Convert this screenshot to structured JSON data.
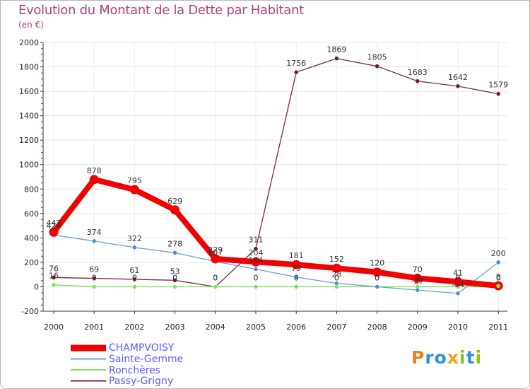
{
  "title": "Evolution du Montant de la Dette par Habitant",
  "unit": "(en €)",
  "logo": [
    "P",
    "r",
    "o",
    "x",
    "i",
    "t",
    "i"
  ],
  "logo_colors": [
    "#f08020",
    "#3090e0",
    "#3090e0",
    "#f0a020",
    "#90c020",
    "#3090e0",
    "#90c020"
  ],
  "chart_data": {
    "type": "line",
    "title": "Evolution du Montant de la Dette par Habitant",
    "ylabel": "(en €)",
    "xlabel": "",
    "ylim": [
      -200,
      2000
    ],
    "yticks": [
      -200,
      0,
      200,
      400,
      600,
      800,
      1000,
      1200,
      1400,
      1600,
      1800,
      2000
    ],
    "categories": [
      "2000",
      "2001",
      "2002",
      "2003",
      "2004",
      "2005",
      "2006",
      "2007",
      "2008",
      "2009",
      "2010",
      "2011"
    ],
    "series": [
      {
        "name": "Passy-Grigny",
        "color": "#7a2a35",
        "marker": "#6a1a25",
        "values": [
          76,
          69,
          61,
          53,
          0,
          311,
          1756,
          1869,
          1805,
          1683,
          1642,
          1579
        ],
        "labels": [
          "76",
          "69",
          "61",
          "53",
          "0",
          "311",
          "1756",
          "1869",
          "1805",
          "1683",
          "1642",
          "1579"
        ]
      },
      {
        "name": "Ronchères",
        "color": "#80e060",
        "marker": "#80e060",
        "values": [
          16,
          0,
          0,
          0,
          0,
          0,
          0,
          0,
          0,
          0,
          0,
          0
        ],
        "labels": [
          "16",
          "0",
          "0",
          "0",
          "0",
          "0",
          "0",
          "0",
          "0",
          "0",
          "0",
          "0"
        ]
      },
      {
        "name": "Sainte-Gemme",
        "color": "#6aa0d8",
        "marker": "#4a90e0",
        "values": [
          424,
          374,
          322,
          278,
          207,
          144,
          79,
          28,
          0,
          -27,
          -54,
          200
        ],
        "labels": [
          "424",
          "374",
          "322",
          "278",
          "207",
          "144",
          "79",
          "28",
          "0",
          "-27",
          "-54",
          "200"
        ]
      },
      {
        "name": "CHAMPVOISY",
        "color": "#f20000",
        "marker": "#f20000",
        "values": [
          447,
          878,
          795,
          629,
          229,
          204,
          181,
          152,
          120,
          70,
          41,
          8
        ],
        "labels": [
          "447",
          "878",
          "795",
          "629",
          "229",
          "204",
          "181",
          "152",
          "120",
          "70",
          "41",
          "8"
        ]
      }
    ],
    "legend": [
      {
        "name": "CHAMPVOISY",
        "color": "#f20000"
      },
      {
        "name": "Sainte-Gemme",
        "color": "#6aa0d8"
      },
      {
        "name": "Ronchères",
        "color": "#80e060"
      },
      {
        "name": "Passy-Grigny",
        "color": "#7a2a35"
      }
    ]
  }
}
